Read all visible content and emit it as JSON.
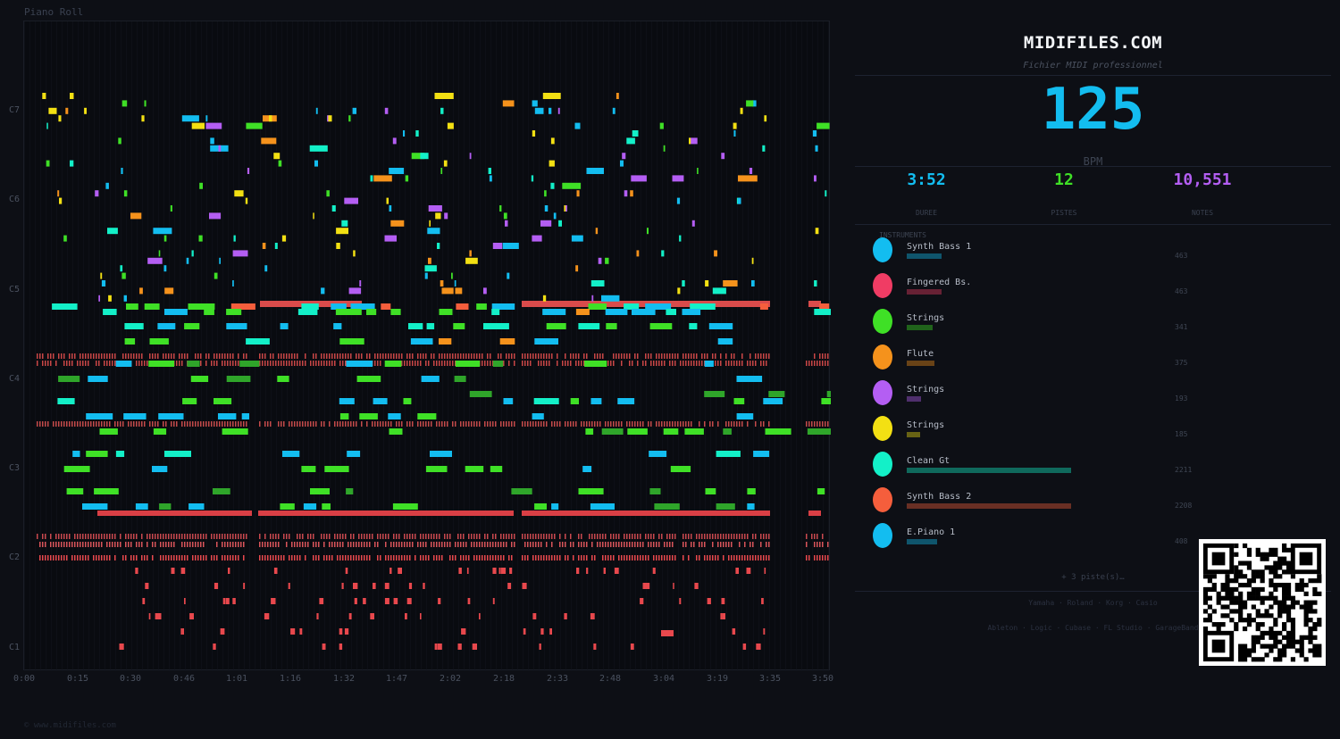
{
  "piano_roll": {
    "title": "Piano Roll",
    "y_labels": [
      "C7",
      "C6",
      "C5",
      "C4",
      "C3",
      "C2",
      "C1"
    ],
    "x_labels": [
      "0:00",
      "0:15",
      "0:30",
      "0:46",
      "1:01",
      "1:16",
      "1:32",
      "1:47",
      "2:02",
      "2:18",
      "2:33",
      "2:48",
      "3:04",
      "3:19",
      "3:35",
      "3:50"
    ],
    "copyright": "© www.midifiles.com"
  },
  "header": {
    "site": "MIDIFILES.COM",
    "tagline": "Fichier MIDI professionnel"
  },
  "tempo": {
    "value": "125",
    "unit": "BPM"
  },
  "stats": [
    {
      "value": "3:52",
      "label": "DUREE",
      "color": "#13bdf0"
    },
    {
      "value": "12",
      "label": "PISTES",
      "color": "#3fe026"
    },
    {
      "value": "10,551",
      "label": "NOTES",
      "color": "#b45ef3"
    }
  ],
  "instruments_heading": "INSTRUMENTS",
  "instruments": [
    {
      "name": "Synth Bass 1",
      "count": "463",
      "color": "#13bdf0",
      "share": 0.21
    },
    {
      "name": "Fingered Bs.",
      "count": "463",
      "color": "#f03c64",
      "share": 0.21
    },
    {
      "name": "Strings",
      "count": "341",
      "color": "#3fe026",
      "share": 0.155
    },
    {
      "name": "Flute",
      "count": "375",
      "color": "#f5921c",
      "share": 0.17
    },
    {
      "name": "Strings",
      "count": "193",
      "color": "#b45ef3",
      "share": 0.087
    },
    {
      "name": "Strings",
      "count": "185",
      "color": "#f3e013",
      "share": 0.084
    },
    {
      "name": "Clean Gt",
      "count": "2211",
      "color": "#13f0c8",
      "share": 1.0
    },
    {
      "name": "Synth Bass 2",
      "count": "2208",
      "color": "#f55e3c",
      "share": 0.999
    },
    {
      "name": "E.Piano 1",
      "count": "408",
      "color": "#13bdf0",
      "share": 0.185
    }
  ],
  "more_tracks": "+ 3 piste(s)…",
  "compatible_hardware": "Yamaha · Roland · Korg · Casio",
  "compatible_software": "Ableton · Logic · Cubase · FL Studio · GarageBand"
}
